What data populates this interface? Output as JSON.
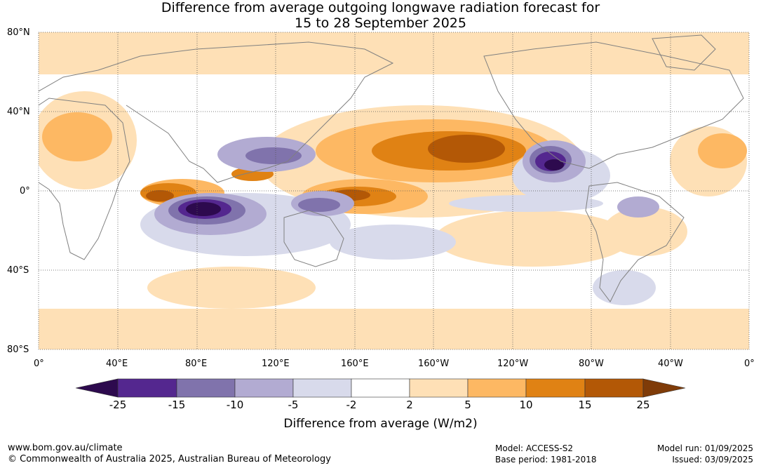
{
  "title": {
    "line1": "Difference from average outgoing longwave radiation forecast for",
    "line2": "15 to 28 September 2025"
  },
  "map": {
    "lat_labels": [
      "80°N",
      "40°N",
      "0°",
      "40°S",
      "80°S"
    ],
    "lon_labels": [
      "0°",
      "40°E",
      "80°E",
      "120°E",
      "160°E",
      "160°W",
      "120°W",
      "80°W",
      "40°W",
      "0°"
    ],
    "land_outline_color": "#808080",
    "grid_color": "#555555"
  },
  "colorbar": {
    "title": "Difference from average (W/m2)",
    "ticks": [
      "-25",
      "-15",
      "-10",
      "-5",
      "-2",
      "2",
      "5",
      "10",
      "15",
      "25"
    ],
    "colors": {
      "below": "#2d0a4e",
      "c1": "#54278f",
      "c2": "#8073ac",
      "c3": "#b2abd2",
      "c4": "#d8daeb",
      "c5": "#ffffff",
      "c6": "#fee0b6",
      "c7": "#fdb863",
      "c8": "#e08214",
      "c9": "#b35806",
      "above": "#7f3b08"
    }
  },
  "footer": {
    "website": "www.bom.gov.au/climate",
    "copyright": "© Commonwealth of Australia 2025, Australian Bureau of Meteorology",
    "model": "Model: ACCESS-S2",
    "base_period": "Base period: 1981-2018",
    "model_run": "Model run: 01/09/2025",
    "issued": "Issued: 03/09/2025"
  }
}
